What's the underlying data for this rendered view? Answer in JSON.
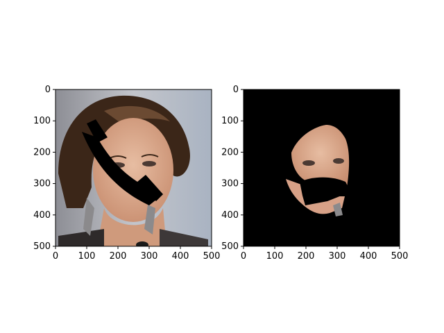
{
  "chart_data": [
    {
      "type": "image",
      "title": "",
      "xlabel": "",
      "ylabel": "",
      "xlim": [
        0,
        500
      ],
      "ylim": [
        500,
        0
      ],
      "xticks": [
        0,
        100,
        200,
        300,
        400,
        500
      ],
      "yticks": [
        0,
        100,
        200,
        300,
        400,
        500
      ],
      "content": "photo-with-occlusion",
      "grid": false
    },
    {
      "type": "image",
      "title": "",
      "xlabel": "",
      "ylabel": "",
      "xlim": [
        0,
        500
      ],
      "ylim": [
        500,
        0
      ],
      "xticks": [
        0,
        100,
        200,
        300,
        400,
        500
      ],
      "yticks": [
        0,
        100,
        200,
        300,
        400,
        500
      ],
      "content": "segmented-face-mask",
      "background": "#000000",
      "grid": false
    }
  ],
  "colors": {
    "mask_background": "#000000",
    "skin": "#d9a98c",
    "hair": "#3b2618",
    "photo_background": "#b8bcc6",
    "occluder": "#000000"
  }
}
